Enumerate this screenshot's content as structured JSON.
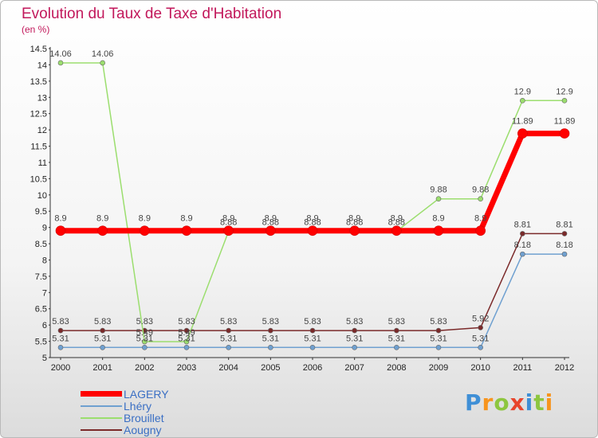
{
  "title": "Evolution du Taux de Taxe d'Habitation",
  "subtitle": "(en %)",
  "logo": {
    "text": "Proxiti",
    "colors": [
      "#3f8fd6",
      "#f7941d",
      "#8dc63f",
      "#e8452c",
      "#3f8fd6",
      "#8dc63f",
      "#f7941d"
    ]
  },
  "chart_data": {
    "type": "line",
    "x": [
      "2000",
      "2001",
      "2002",
      "2003",
      "2004",
      "2005",
      "2006",
      "2007",
      "2008",
      "2009",
      "2010",
      "2011",
      "2012"
    ],
    "ylim": [
      5,
      14.5
    ],
    "yticks": [
      "5",
      "5.5",
      "6",
      "6.5",
      "7",
      "7.5",
      "8",
      "8.5",
      "9",
      "9.5",
      "10",
      "10.5",
      "11",
      "11.5",
      "12",
      "12.5",
      "13",
      "13.5",
      "14",
      "14.5"
    ],
    "grid": false,
    "legend": "bottom-left",
    "series": [
      {
        "name": "LAGERY",
        "color": "#ff0000",
        "width": 7,
        "values": [
          8.9,
          8.9,
          8.9,
          8.9,
          8.9,
          8.9,
          8.9,
          8.9,
          8.9,
          8.9,
          8.9,
          11.89,
          11.89
        ],
        "labels": [
          "8.9",
          "8.9",
          "8.9",
          "8.9",
          "8.9",
          "8.9",
          "8.9",
          "8.9",
          "8.9",
          "8.9",
          "8.9",
          "11.89",
          "11.89"
        ]
      },
      {
        "name": "Lhéry",
        "color": "#6fa0d0",
        "width": 1.5,
        "values": [
          5.31,
          5.31,
          5.31,
          5.31,
          5.31,
          5.31,
          5.31,
          5.31,
          5.31,
          5.31,
          5.31,
          8.18,
          8.18
        ],
        "labels": [
          "5.31",
          "5.31",
          "5.31",
          "5.31",
          "5.31",
          "5.31",
          "5.31",
          "5.31",
          "5.31",
          "5.31",
          "5.31",
          "8.18",
          "8.18"
        ]
      },
      {
        "name": "Brouillet",
        "color": "#9bde6e",
        "width": 1.5,
        "values": [
          14.06,
          14.06,
          5.49,
          5.49,
          8.88,
          8.88,
          8.88,
          8.88,
          8.88,
          9.88,
          9.88,
          12.9,
          12.9
        ],
        "labels": [
          "14.06",
          "14.06",
          "5.49",
          "5.49",
          "8.88",
          "8.88",
          "8.88",
          "8.88",
          "8.88",
          "9.88",
          "9.88",
          "12.9",
          "12.9"
        ]
      },
      {
        "name": "Aougny",
        "color": "#7b2a2a",
        "width": 1.5,
        "values": [
          5.83,
          5.83,
          5.83,
          5.83,
          5.83,
          5.83,
          5.83,
          5.83,
          5.83,
          5.83,
          5.92,
          8.81,
          8.81
        ],
        "labels": [
          "5.83",
          "5.83",
          "5.83",
          "5.83",
          "5.83",
          "5.83",
          "5.83",
          "5.83",
          "5.83",
          "5.83",
          "5.92",
          "8.81",
          "8.81"
        ]
      }
    ]
  }
}
